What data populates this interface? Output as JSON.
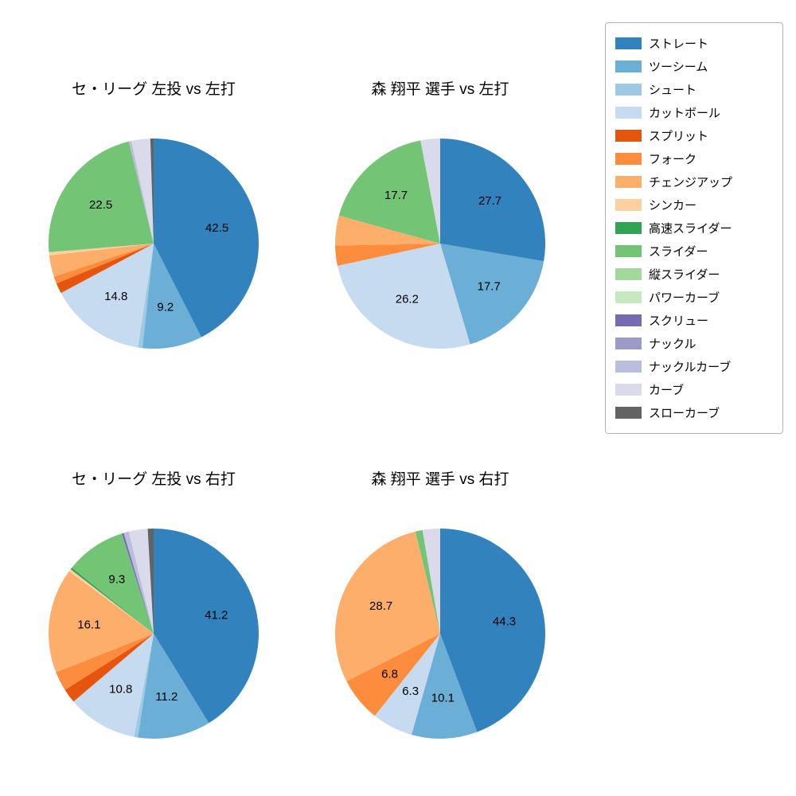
{
  "page": {
    "background": "#ffffff"
  },
  "legend": {
    "entries": [
      {
        "label": "ストレート",
        "color": "#3182bd"
      },
      {
        "label": "ツーシーム",
        "color": "#6baed6"
      },
      {
        "label": "シュート",
        "color": "#9ecae1"
      },
      {
        "label": "カットボール",
        "color": "#c6dbef"
      },
      {
        "label": "スプリット",
        "color": "#e6550d"
      },
      {
        "label": "フォーク",
        "color": "#fd8d3c"
      },
      {
        "label": "チェンジアップ",
        "color": "#fdae6b"
      },
      {
        "label": "シンカー",
        "color": "#fdd0a2"
      },
      {
        "label": "高速スライダー",
        "color": "#31a354"
      },
      {
        "label": "スライダー",
        "color": "#74c476"
      },
      {
        "label": "縦スライダー",
        "color": "#a1d99b"
      },
      {
        "label": "パワーカーブ",
        "color": "#c7e9c0"
      },
      {
        "label": "スクリュー",
        "color": "#756bb1"
      },
      {
        "label": "ナックル",
        "color": "#9e9ac8"
      },
      {
        "label": "ナックルカーブ",
        "color": "#bcbddc"
      },
      {
        "label": "カーブ",
        "color": "#dadaeb"
      },
      {
        "label": "スローカーブ",
        "color": "#636363"
      }
    ]
  },
  "chart_data": [
    {
      "type": "pie",
      "title": "セ・リーグ 左投 vs 左打",
      "start_angle_deg": 0,
      "direction": "clockwise",
      "slices": [
        {
          "name": "ストレート",
          "value": 42.5,
          "label": "42.5"
        },
        {
          "name": "ツーシーム",
          "value": 9.2,
          "label": "9.2"
        },
        {
          "name": "シュート",
          "value": 0.7,
          "label": ""
        },
        {
          "name": "カットボール",
          "value": 14.8,
          "label": "14.8"
        },
        {
          "name": "スプリット",
          "value": 1.6,
          "label": ""
        },
        {
          "name": "フォーク",
          "value": 1.1,
          "label": ""
        },
        {
          "name": "チェンジアップ",
          "value": 3.3,
          "label": ""
        },
        {
          "name": "シンカー",
          "value": 0.5,
          "label": ""
        },
        {
          "name": "スライダー",
          "value": 22.5,
          "label": "22.5"
        },
        {
          "name": "ナックルカーブ",
          "value": 0.4,
          "label": ""
        },
        {
          "name": "カーブ",
          "value": 2.9,
          "label": ""
        },
        {
          "name": "スローカーブ",
          "value": 0.5,
          "label": ""
        }
      ]
    },
    {
      "type": "pie",
      "title": "森 翔平 選手 vs 左打",
      "start_angle_deg": 0,
      "direction": "clockwise",
      "slices": [
        {
          "name": "ストレート",
          "value": 27.7,
          "label": "27.7"
        },
        {
          "name": "ツーシーム",
          "value": 17.7,
          "label": "17.7"
        },
        {
          "name": "カットボール",
          "value": 26.2,
          "label": "26.2"
        },
        {
          "name": "フォーク",
          "value": 3.1,
          "label": ""
        },
        {
          "name": "チェンジアップ",
          "value": 4.6,
          "label": ""
        },
        {
          "name": "スライダー",
          "value": 17.7,
          "label": "17.7"
        },
        {
          "name": "カーブ",
          "value": 3.0,
          "label": ""
        }
      ]
    },
    {
      "type": "pie",
      "title": "セ・リーグ 左投 vs 右打",
      "start_angle_deg": 0,
      "direction": "clockwise",
      "slices": [
        {
          "name": "ストレート",
          "value": 41.2,
          "label": "41.2"
        },
        {
          "name": "ツーシーム",
          "value": 11.2,
          "label": "11.2"
        },
        {
          "name": "シュート",
          "value": 0.6,
          "label": ""
        },
        {
          "name": "カットボール",
          "value": 10.8,
          "label": "10.8"
        },
        {
          "name": "スプリット",
          "value": 2.2,
          "label": ""
        },
        {
          "name": "フォーク",
          "value": 3.0,
          "label": ""
        },
        {
          "name": "チェンジアップ",
          "value": 16.1,
          "label": "16.1"
        },
        {
          "name": "シンカー",
          "value": 0.4,
          "label": ""
        },
        {
          "name": "高速スライダー",
          "value": 0.3,
          "label": ""
        },
        {
          "name": "スライダー",
          "value": 9.3,
          "label": "9.3"
        },
        {
          "name": "スクリュー",
          "value": 0.3,
          "label": ""
        },
        {
          "name": "ナックルカーブ",
          "value": 0.8,
          "label": ""
        },
        {
          "name": "カーブ",
          "value": 2.9,
          "label": ""
        },
        {
          "name": "スローカーブ",
          "value": 0.9,
          "label": ""
        }
      ]
    },
    {
      "type": "pie",
      "title": "森 翔平 選手 vs 右打",
      "start_angle_deg": 0,
      "direction": "clockwise",
      "slices": [
        {
          "name": "ストレート",
          "value": 44.3,
          "label": "44.3"
        },
        {
          "name": "ツーシーム",
          "value": 10.1,
          "label": "10.1"
        },
        {
          "name": "カットボール",
          "value": 6.3,
          "label": "6.3"
        },
        {
          "name": "フォーク",
          "value": 6.8,
          "label": "6.8"
        },
        {
          "name": "チェンジアップ",
          "value": 28.7,
          "label": "28.7"
        },
        {
          "name": "スライダー",
          "value": 1.1,
          "label": ""
        },
        {
          "name": "カーブ",
          "value": 2.7,
          "label": ""
        }
      ]
    }
  ]
}
